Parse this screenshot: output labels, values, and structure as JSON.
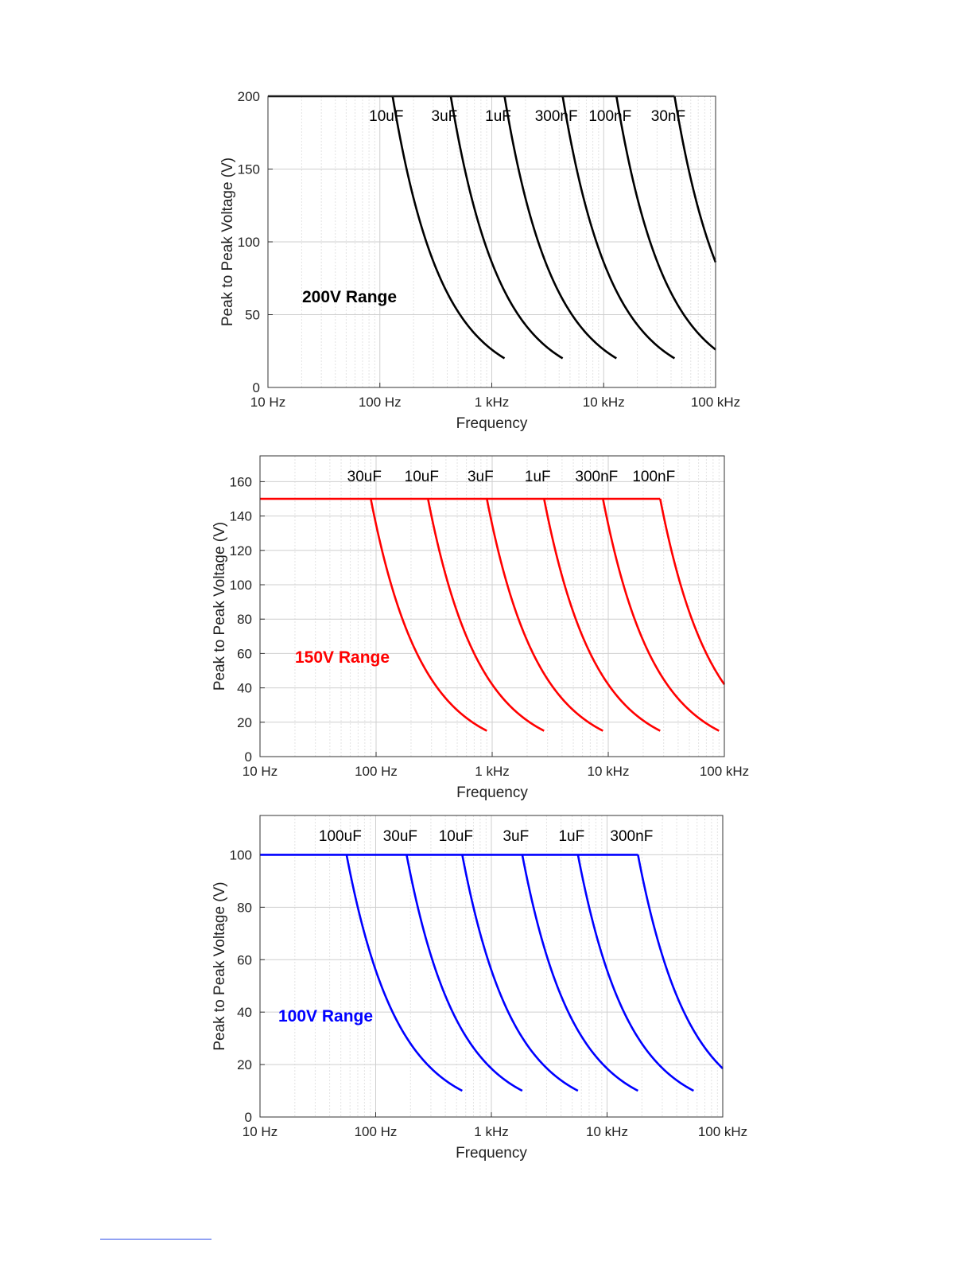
{
  "chart_data": [
    {
      "type": "line",
      "xscale": "log",
      "xlabel": "Frequency",
      "ylabel": "Peak to Peak Voltage (V)",
      "xlim": [
        10,
        100000
      ],
      "ylim": [
        0,
        200
      ],
      "yticks": [
        0,
        50,
        100,
        150,
        200
      ],
      "xticks": [
        10,
        100,
        1000,
        10000,
        100000
      ],
      "xtick_labels": [
        "10 Hz",
        "100 Hz",
        "1 kHz",
        "10 kHz",
        "100 kHz"
      ],
      "grid": true,
      "color": "#000000",
      "annotation": "200V Range",
      "vmax": 200,
      "series": [
        {
          "name": "10uF",
          "x": [
            130,
            1300
          ],
          "y": [
            200,
            20
          ]
        },
        {
          "name": "3uF",
          "x": [
            430,
            4300
          ],
          "y": [
            200,
            20
          ]
        },
        {
          "name": "1uF",
          "x": [
            1300,
            13000
          ],
          "y": [
            200,
            20
          ]
        },
        {
          "name": "300nF",
          "x": [
            4300,
            43000
          ],
          "y": [
            200,
            20
          ]
        },
        {
          "name": "100nF",
          "x": [
            13000,
            100000
          ],
          "y": [
            200,
            26
          ]
        },
        {
          "name": "30nF",
          "x": [
            43000,
            100000
          ],
          "y": [
            200,
            86
          ]
        }
      ]
    },
    {
      "type": "line",
      "xscale": "log",
      "xlabel": "Frequency",
      "ylabel": "Peak to Peak Voltage (V)",
      "xlim": [
        10,
        100000
      ],
      "ylim": [
        0,
        175
      ],
      "yticks": [
        0,
        20,
        40,
        60,
        80,
        100,
        120,
        140,
        160
      ],
      "xticks": [
        10,
        100,
        1000,
        10000,
        100000
      ],
      "xtick_labels": [
        "10 Hz",
        "100 Hz",
        "1 kHz",
        "10 kHz",
        "100 kHz"
      ],
      "grid": true,
      "color": "#ff0000",
      "annotation": "150V Range",
      "vmax": 150,
      "series": [
        {
          "name": "30uF",
          "x": [
            90,
            900
          ],
          "y": [
            150,
            15
          ]
        },
        {
          "name": "10uF",
          "x": [
            280,
            2800
          ],
          "y": [
            150,
            15
          ]
        },
        {
          "name": "3uF",
          "x": [
            900,
            9000
          ],
          "y": [
            150,
            15
          ]
        },
        {
          "name": "1uF",
          "x": [
            2800,
            28000
          ],
          "y": [
            150,
            15
          ]
        },
        {
          "name": "300nF",
          "x": [
            9000,
            90000
          ],
          "y": [
            150,
            15
          ]
        },
        {
          "name": "100nF",
          "x": [
            28000,
            100000
          ],
          "y": [
            150,
            42
          ]
        }
      ]
    },
    {
      "type": "line",
      "xscale": "log",
      "xlabel": "Frequency",
      "ylabel": "Peak to Peak Voltage (V)",
      "xlim": [
        10,
        100000
      ],
      "ylim": [
        0,
        115
      ],
      "yticks": [
        0,
        20,
        40,
        60,
        80,
        100
      ],
      "xticks": [
        10,
        100,
        1000,
        10000,
        100000
      ],
      "xtick_labels": [
        "10 Hz",
        "100 Hz",
        "1 kHz",
        "10 kHz",
        "100 kHz"
      ],
      "grid": true,
      "color": "#0000ff",
      "annotation": "100V Range",
      "vmax": 100,
      "series": [
        {
          "name": "100uF",
          "x": [
            56,
            560
          ],
          "y": [
            100,
            10
          ]
        },
        {
          "name": "30uF",
          "x": [
            185,
            1850
          ],
          "y": [
            100,
            10
          ]
        },
        {
          "name": "10uF",
          "x": [
            560,
            5600
          ],
          "y": [
            100,
            10
          ]
        },
        {
          "name": "3uF",
          "x": [
            1850,
            18500
          ],
          "y": [
            100,
            10
          ]
        },
        {
          "name": "1uF",
          "x": [
            5600,
            56000
          ],
          "y": [
            100,
            10
          ]
        },
        {
          "name": "300nF",
          "x": [
            18500,
            100000
          ],
          "y": [
            100,
            18.5
          ]
        }
      ]
    }
  ]
}
